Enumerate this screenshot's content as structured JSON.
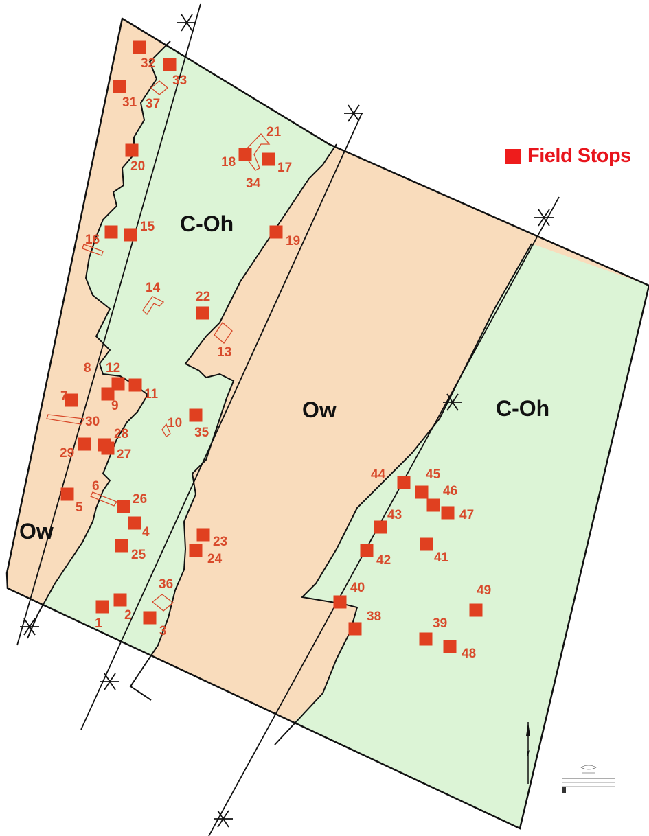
{
  "legend": {
    "label": "Field Stops",
    "color": "#ee1c1c"
  },
  "zones": [
    {
      "label": "C-Oh",
      "kind": "C-Oh"
    },
    {
      "label": "C-Oh",
      "kind": "C-Oh"
    },
    {
      "label": "Ow",
      "kind": "Ow"
    },
    {
      "label": "Ow",
      "kind": "Ow"
    }
  ],
  "colors": {
    "ow": "#f9dcbc",
    "coh": "#dcf4d6",
    "stop": "#e04020",
    "label": "#d84a2b",
    "line": "#111111"
  },
  "stops": [
    {
      "id": "1",
      "label": "1"
    },
    {
      "id": "2",
      "label": "2"
    },
    {
      "id": "3",
      "label": "3"
    },
    {
      "id": "4",
      "label": "4"
    },
    {
      "id": "5",
      "label": "5"
    },
    {
      "id": "6",
      "label": "6"
    },
    {
      "id": "7",
      "label": "7"
    },
    {
      "id": "8",
      "label": "8"
    },
    {
      "id": "9",
      "label": "9"
    },
    {
      "id": "10",
      "label": "10"
    },
    {
      "id": "11",
      "label": "11"
    },
    {
      "id": "12",
      "label": "12"
    },
    {
      "id": "13",
      "label": "13"
    },
    {
      "id": "14",
      "label": "14"
    },
    {
      "id": "15",
      "label": "15"
    },
    {
      "id": "16",
      "label": "16"
    },
    {
      "id": "17",
      "label": "17"
    },
    {
      "id": "18",
      "label": "18"
    },
    {
      "id": "19",
      "label": "19"
    },
    {
      "id": "20",
      "label": "20"
    },
    {
      "id": "21",
      "label": "21"
    },
    {
      "id": "22",
      "label": "22"
    },
    {
      "id": "23",
      "label": "23"
    },
    {
      "id": "24",
      "label": "24"
    },
    {
      "id": "25",
      "label": "25"
    },
    {
      "id": "26",
      "label": "26"
    },
    {
      "id": "27",
      "label": "27"
    },
    {
      "id": "28",
      "label": "28"
    },
    {
      "id": "29",
      "label": "29"
    },
    {
      "id": "30",
      "label": "30"
    },
    {
      "id": "31",
      "label": "31"
    },
    {
      "id": "32",
      "label": "32"
    },
    {
      "id": "33",
      "label": "33"
    },
    {
      "id": "34",
      "label": "34"
    },
    {
      "id": "35",
      "label": "35"
    },
    {
      "id": "36",
      "label": "36"
    },
    {
      "id": "37",
      "label": "37"
    },
    {
      "id": "38",
      "label": "38"
    },
    {
      "id": "39",
      "label": "39"
    },
    {
      "id": "40",
      "label": "40"
    },
    {
      "id": "41",
      "label": "41"
    },
    {
      "id": "42",
      "label": "42"
    },
    {
      "id": "43",
      "label": "43"
    },
    {
      "id": "44",
      "label": "44"
    },
    {
      "id": "45",
      "label": "45"
    },
    {
      "id": "46",
      "label": "46"
    },
    {
      "id": "47",
      "label": "47"
    },
    {
      "id": "48",
      "label": "48"
    },
    {
      "id": "49",
      "label": "49"
    }
  ]
}
